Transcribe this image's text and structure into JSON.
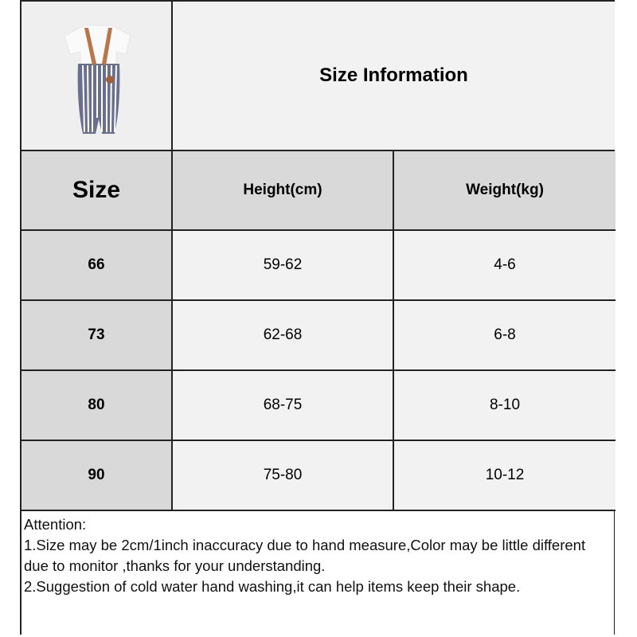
{
  "title": "Size Information",
  "product_image": {
    "icon": "striped-romper-with-suspenders-photo"
  },
  "headers": [
    "Size",
    "Height(cm)",
    "Weight(kg)"
  ],
  "rows": [
    [
      "66",
      "59-62",
      "4-6"
    ],
    [
      "73",
      "62-68",
      "6-8"
    ],
    [
      "80",
      "68-75",
      "8-10"
    ],
    [
      "90",
      "75-80",
      "10-12"
    ]
  ],
  "notes": {
    "heading": "Attention:",
    "lines": [
      "1.Size may be 2cm/1inch inaccuracy due to hand measure,Color may be little different due to monitor ,thanks for your understanding.",
      "2.Suggestion of cold water hand washing,it can help items keep their shape."
    ]
  },
  "colors": {
    "header_gray": "#d9d9d9",
    "cell_light": "#f2f2f2",
    "border": "#222222"
  }
}
